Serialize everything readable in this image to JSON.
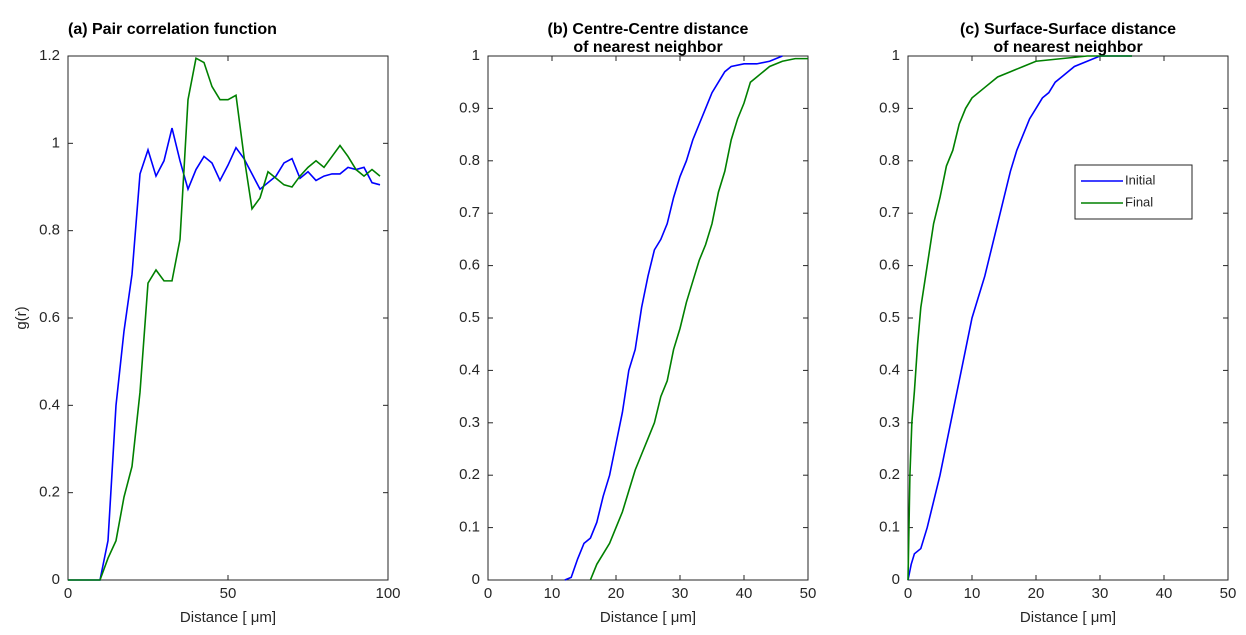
{
  "chart_data": [
    {
      "type": "line",
      "title": [
        "(a) Pair correlation function"
      ],
      "xlabel": "Distance [  μm]",
      "ylabel": "g(r)",
      "xlim": [
        0,
        100
      ],
      "xticks": [
        0,
        50,
        100
      ],
      "ylim": [
        0,
        1.2
      ],
      "yticks": [
        0,
        0.2,
        0.4,
        0.6,
        0.8,
        1,
        1.2
      ],
      "grid": false,
      "series": [
        {
          "color": "#0000ff",
          "x": [
            0,
            2.5,
            5,
            7.5,
            10,
            12.5,
            15,
            17.5,
            20,
            22.5,
            25,
            27.5,
            30,
            32.5,
            35,
            37.5,
            40,
            42.5,
            45,
            47.5,
            50,
            52.5,
            55,
            57.5,
            60,
            62.5,
            65,
            67.5,
            70,
            72.5,
            75,
            77.5,
            80,
            82.5,
            85,
            87.5,
            90,
            92.5,
            95,
            97.5
          ],
          "values": [
            0,
            0,
            0,
            0,
            0,
            0.09,
            0.4,
            0.57,
            0.7,
            0.93,
            0.985,
            0.925,
            0.96,
            1.035,
            0.96,
            0.895,
            0.94,
            0.97,
            0.955,
            0.915,
            0.95,
            0.99,
            0.965,
            0.93,
            0.895,
            0.91,
            0.925,
            0.955,
            0.965,
            0.92,
            0.935,
            0.915,
            0.925,
            0.93,
            0.93,
            0.945,
            0.94,
            0.945,
            0.91,
            0.905
          ]
        },
        {
          "color": "#008000",
          "x": [
            0,
            2.5,
            5,
            7.5,
            10,
            12.5,
            15,
            17.5,
            20,
            22.5,
            25,
            27.5,
            30,
            32.5,
            35,
            37.5,
            40,
            42.5,
            45,
            47.5,
            50,
            52.5,
            55,
            57.5,
            60,
            62.5,
            65,
            67.5,
            70,
            72.5,
            75,
            77.5,
            80,
            82.5,
            85,
            87.5,
            90,
            92.5,
            95,
            97.5
          ],
          "values": [
            0,
            0,
            0,
            0,
            0,
            0.05,
            0.09,
            0.19,
            0.26,
            0.43,
            0.68,
            0.71,
            0.685,
            0.685,
            0.78,
            1.1,
            1.195,
            1.185,
            1.13,
            1.1,
            1.1,
            1.11,
            0.97,
            0.85,
            0.875,
            0.935,
            0.92,
            0.905,
            0.9,
            0.925,
            0.945,
            0.96,
            0.945,
            0.97,
            0.995,
            0.97,
            0.94,
            0.925,
            0.94,
            0.925
          ]
        }
      ]
    },
    {
      "type": "line",
      "title": [
        "(b) Centre-Centre distance",
        "of nearest neighbor"
      ],
      "xlabel": "Distance [  μm]",
      "xlim": [
        0,
        50
      ],
      "xticks": [
        0,
        10,
        20,
        30,
        40,
        50
      ],
      "ylim": [
        0,
        1
      ],
      "yticks": [
        0,
        0.1,
        0.2,
        0.3,
        0.4,
        0.5,
        0.6,
        0.7,
        0.8,
        0.9,
        1
      ],
      "grid": false,
      "series": [
        {
          "color": "#0000ff",
          "x": [
            12,
            13,
            14,
            15,
            16,
            17,
            18,
            19,
            20,
            21,
            22,
            23,
            24,
            25,
            26,
            27,
            28,
            29,
            30,
            31,
            32,
            33,
            34,
            35,
            36,
            37,
            38,
            40,
            42,
            44,
            46
          ],
          "values": [
            0,
            0.005,
            0.04,
            0.07,
            0.08,
            0.11,
            0.16,
            0.2,
            0.26,
            0.32,
            0.4,
            0.44,
            0.52,
            0.58,
            0.63,
            0.65,
            0.68,
            0.73,
            0.77,
            0.8,
            0.84,
            0.87,
            0.9,
            0.93,
            0.95,
            0.97,
            0.98,
            0.985,
            0.985,
            0.99,
            1
          ]
        },
        {
          "color": "#008000",
          "x": [
            16,
            17,
            18,
            19,
            20,
            21,
            22,
            23,
            24,
            25,
            26,
            27,
            28,
            29,
            30,
            31,
            32,
            33,
            34,
            35,
            36,
            37,
            38,
            39,
            40,
            41,
            42,
            43,
            44,
            46,
            48,
            50
          ],
          "values": [
            0,
            0.03,
            0.05,
            0.07,
            0.1,
            0.13,
            0.17,
            0.21,
            0.24,
            0.27,
            0.3,
            0.35,
            0.38,
            0.44,
            0.48,
            0.53,
            0.57,
            0.61,
            0.64,
            0.68,
            0.74,
            0.78,
            0.84,
            0.88,
            0.91,
            0.95,
            0.96,
            0.97,
            0.98,
            0.99,
            0.995,
            0.995
          ]
        }
      ]
    },
    {
      "type": "line",
      "title": [
        "(c) Surface-Surface distance",
        "of nearest neighbor"
      ],
      "xlabel": "Distance [  μm]",
      "xlim": [
        0,
        50
      ],
      "xticks": [
        0,
        10,
        20,
        30,
        40,
        50
      ],
      "ylim": [
        0,
        1
      ],
      "yticks": [
        0,
        0.1,
        0.2,
        0.3,
        0.4,
        0.5,
        0.6,
        0.7,
        0.8,
        0.9,
        1
      ],
      "grid": false,
      "legend": "upper right",
      "series": [
        {
          "name": "Initial",
          "color": "#0000ff",
          "x": [
            0,
            0.5,
            1,
            2,
            3,
            4,
            5,
            6,
            7,
            8,
            9,
            10,
            11,
            12,
            13,
            14,
            15,
            16,
            17,
            18,
            19,
            20,
            21,
            22,
            23,
            24,
            26,
            28,
            30,
            32,
            35
          ],
          "values": [
            0,
            0.03,
            0.05,
            0.06,
            0.1,
            0.15,
            0.2,
            0.26,
            0.32,
            0.38,
            0.44,
            0.5,
            0.54,
            0.58,
            0.63,
            0.68,
            0.73,
            0.78,
            0.82,
            0.85,
            0.88,
            0.9,
            0.92,
            0.93,
            0.95,
            0.96,
            0.98,
            0.99,
            1,
            1,
            1
          ]
        },
        {
          "name": "Final",
          "color": "#008000",
          "x": [
            0,
            0.3,
            0.6,
            1,
            1.5,
            2,
            3,
            4,
            5,
            6,
            7,
            8,
            9,
            10,
            12,
            14,
            16,
            18,
            20,
            24,
            28,
            35
          ],
          "values": [
            0,
            0.2,
            0.3,
            0.36,
            0.45,
            0.52,
            0.6,
            0.68,
            0.73,
            0.79,
            0.82,
            0.87,
            0.9,
            0.92,
            0.94,
            0.96,
            0.97,
            0.98,
            0.99,
            0.995,
            1,
            1
          ]
        }
      ]
    }
  ]
}
